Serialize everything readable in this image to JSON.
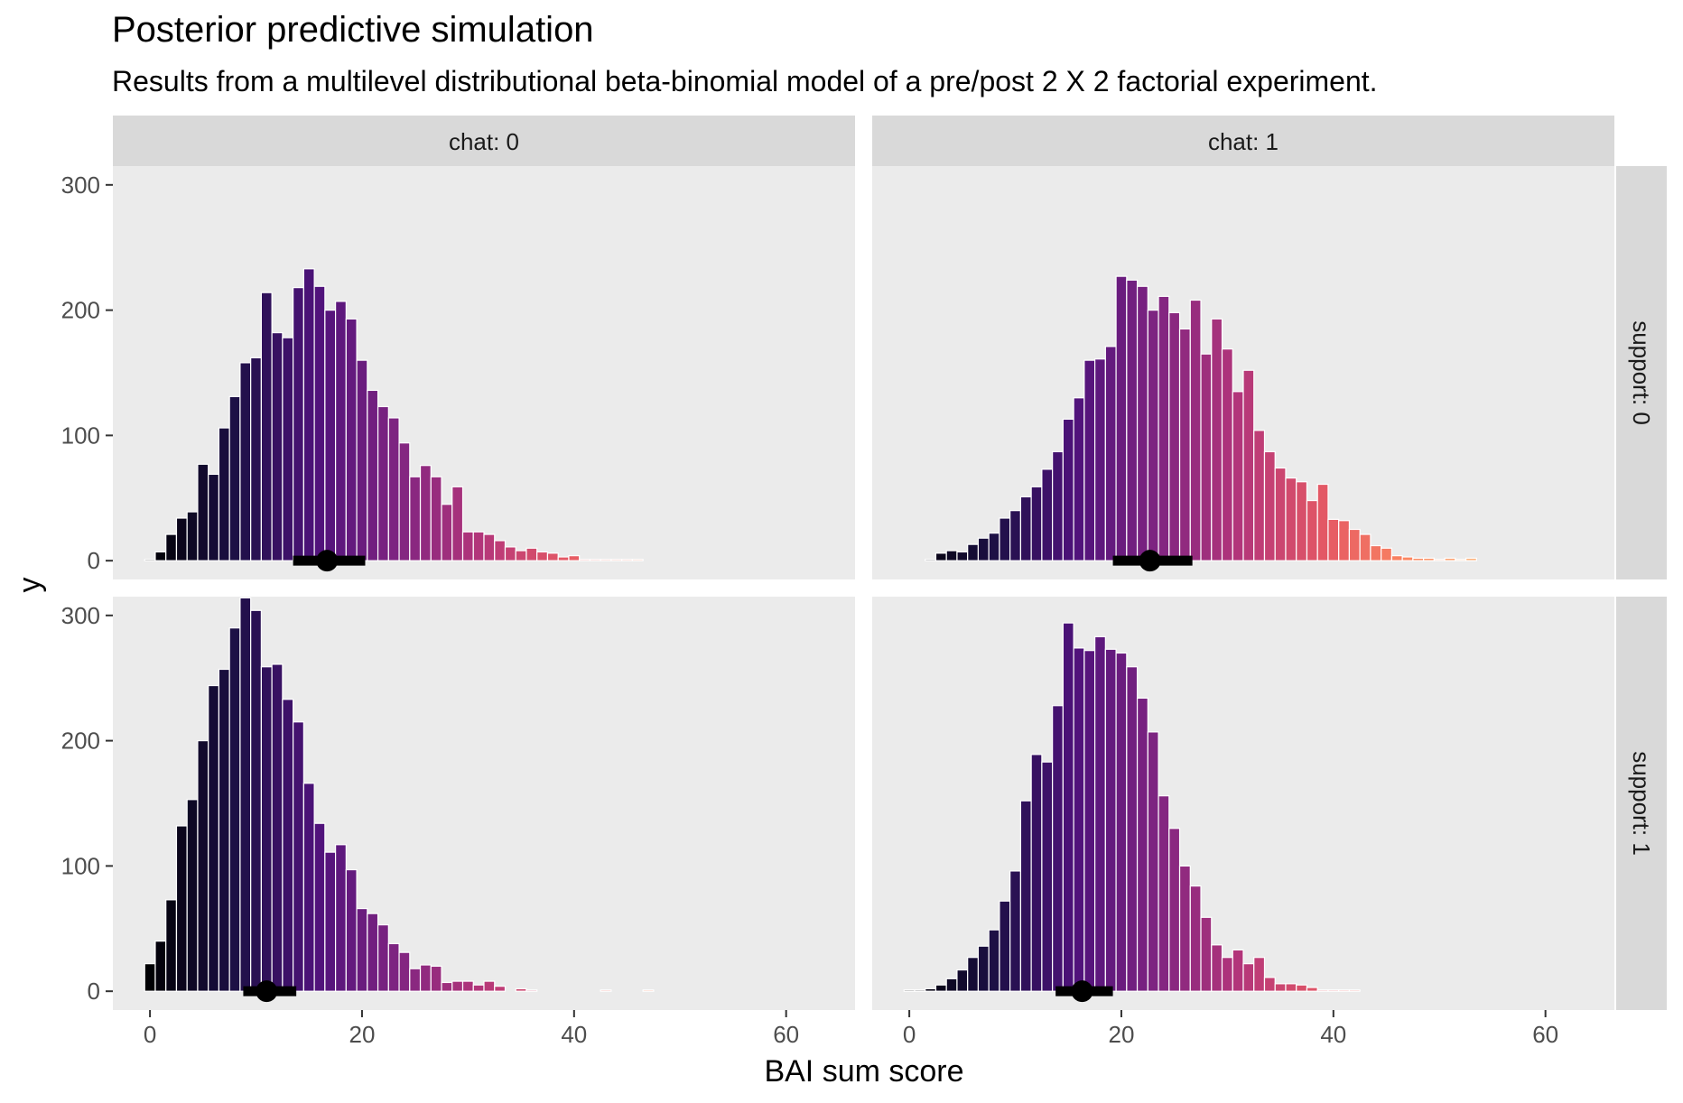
{
  "chart_data": {
    "type": "bar",
    "title": "Posterior predictive simulation",
    "subtitle": "Results from a multilevel distributional beta-binomial model of a pre/post 2 X 2 factorial experiment.",
    "xlabel": "BAI sum score",
    "ylabel": "y",
    "xlim": [
      -3.5,
      66.5
    ],
    "ylim": [
      -15,
      315
    ],
    "x_ticks": [
      0,
      20,
      40,
      60
    ],
    "y_ticks": [
      0,
      100,
      200,
      300
    ],
    "grid": false,
    "colors": {
      "panel_bg": "#ebebeb",
      "strip_bg": "#d9d9d9",
      "bar_outline": "#ffffff",
      "palette": [
        "#000004",
        "#1c1044",
        "#4f127b",
        "#812581",
        "#b5367a",
        "#e55964",
        "#fb8761",
        "#fec287"
      ]
    },
    "panels": [
      {
        "chat": "chat: 0",
        "support": "support: 0",
        "x": [
          0,
          1,
          2,
          3,
          4,
          5,
          6,
          7,
          8,
          9,
          10,
          11,
          12,
          13,
          14,
          15,
          16,
          17,
          18,
          19,
          20,
          21,
          22,
          23,
          24,
          25,
          26,
          27,
          28,
          29,
          30,
          31,
          32,
          33,
          34,
          35,
          36,
          37,
          38,
          39,
          40,
          41,
          42,
          43,
          44,
          45,
          46
        ],
        "counts": [
          1,
          7,
          21,
          34,
          39,
          77,
          69,
          106,
          131,
          158,
          162,
          214,
          182,
          178,
          218,
          233,
          219,
          200,
          207,
          193,
          160,
          136,
          123,
          114,
          94,
          67,
          76,
          67,
          45,
          59,
          23,
          23,
          21,
          16,
          11,
          8,
          10,
          7,
          6,
          3,
          4,
          1,
          1,
          1,
          1,
          1,
          1
        ],
        "median": 16.7,
        "interval": [
          13.5,
          20.3
        ]
      },
      {
        "chat": "chat: 1",
        "support": "support: 0",
        "x": [
          2,
          3,
          4,
          5,
          6,
          7,
          8,
          9,
          10,
          11,
          12,
          13,
          14,
          15,
          16,
          17,
          18,
          19,
          20,
          21,
          22,
          23,
          24,
          25,
          26,
          27,
          28,
          29,
          30,
          31,
          32,
          33,
          34,
          35,
          36,
          37,
          38,
          39,
          40,
          41,
          42,
          43,
          44,
          45,
          46,
          47,
          48,
          49,
          50,
          51,
          52,
          53
        ],
        "counts": [
          1,
          6,
          8,
          7,
          13,
          18,
          22,
          34,
          40,
          51,
          59,
          73,
          87,
          113,
          130,
          160,
          161,
          171,
          227,
          224,
          219,
          200,
          211,
          198,
          185,
          208,
          165,
          193,
          169,
          135,
          152,
          104,
          87,
          74,
          66,
          63,
          48,
          61,
          33,
          32,
          25,
          21,
          12,
          10,
          4,
          3,
          2,
          2,
          1,
          2,
          1,
          2
        ],
        "median": 22.7,
        "interval": [
          19.2,
          26.7
        ]
      },
      {
        "chat": "chat: 0",
        "support": "support: 1",
        "x": [
          0,
          1,
          2,
          3,
          4,
          5,
          6,
          7,
          8,
          9,
          10,
          11,
          12,
          13,
          14,
          15,
          16,
          17,
          18,
          19,
          20,
          21,
          22,
          23,
          24,
          25,
          26,
          27,
          28,
          29,
          30,
          31,
          32,
          33,
          35,
          36,
          43,
          47
        ],
        "counts": [
          22,
          40,
          73,
          132,
          153,
          200,
          244,
          257,
          290,
          314,
          304,
          259,
          261,
          233,
          215,
          166,
          134,
          111,
          117,
          97,
          66,
          62,
          53,
          38,
          31,
          18,
          21,
          20,
          7,
          8,
          8,
          5,
          8,
          4,
          2,
          1,
          1,
          1
        ],
        "median": 11.0,
        "interval": [
          8.8,
          13.8
        ]
      },
      {
        "chat": "chat: 1",
        "support": "support: 1",
        "x": [
          0,
          1,
          2,
          3,
          4,
          5,
          6,
          7,
          8,
          9,
          10,
          11,
          12,
          13,
          14,
          15,
          16,
          17,
          18,
          19,
          20,
          21,
          22,
          23,
          24,
          25,
          26,
          27,
          28,
          29,
          30,
          31,
          32,
          33,
          34,
          35,
          36,
          37,
          38,
          39,
          40,
          41,
          42
        ],
        "counts": [
          1,
          1,
          2,
          5,
          10,
          17,
          27,
          36,
          49,
          72,
          96,
          152,
          189,
          183,
          228,
          294,
          274,
          272,
          283,
          273,
          270,
          259,
          234,
          207,
          156,
          130,
          100,
          84,
          59,
          37,
          27,
          33,
          22,
          27,
          11,
          6,
          6,
          5,
          3,
          1,
          1,
          1,
          1
        ],
        "median": 16.3,
        "interval": [
          13.8,
          19.2
        ]
      }
    ]
  }
}
